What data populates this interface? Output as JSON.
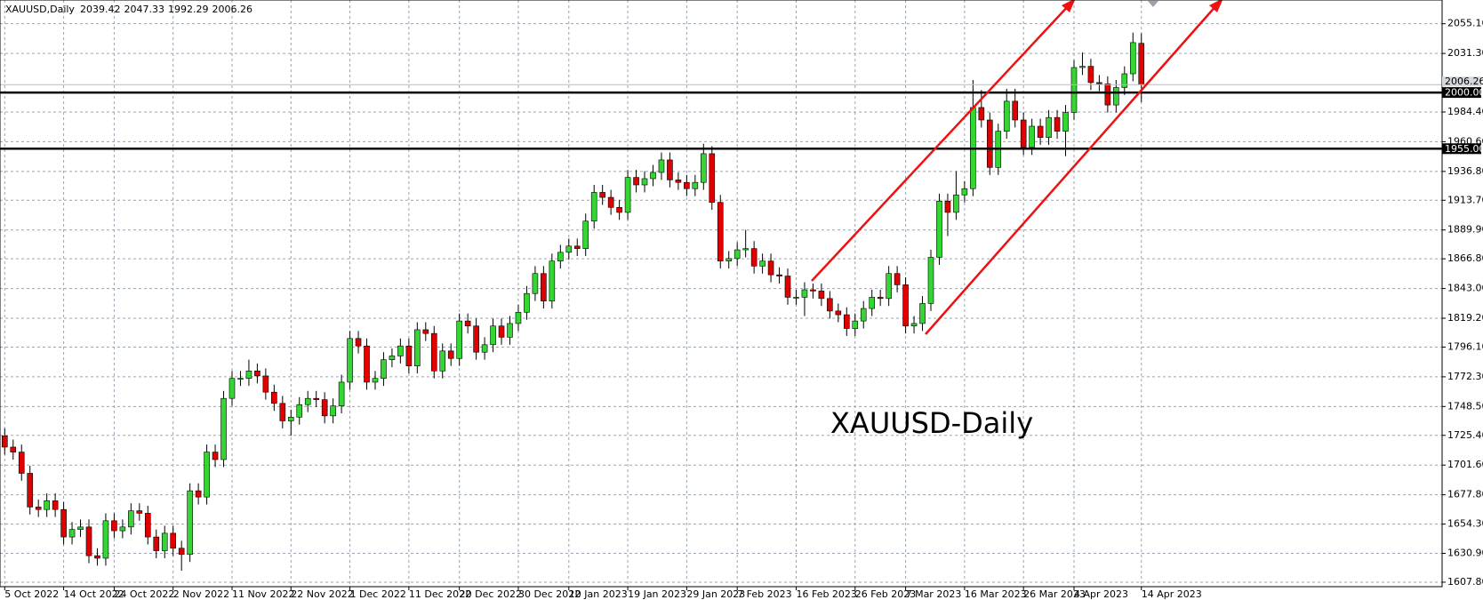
{
  "chart_data": {
    "type": "candlestick",
    "symbol": "XAUUSD,Daily",
    "annotation": "XAUUSD-Daily",
    "up_color": "#33d633",
    "down_color": "#e00000",
    "annotation_color": "#e8141c",
    "grid": true,
    "ylim": [
      1604.2,
      2074.1
    ],
    "yticks": [
      {
        "value": 1607.8,
        "label": "1607.80"
      },
      {
        "value": 1630.9,
        "label": "1630.90"
      },
      {
        "value": 1654.3,
        "label": "1654.30"
      },
      {
        "value": 1677.8,
        "label": "1677.80"
      },
      {
        "value": 1701.6,
        "label": "1701.60"
      },
      {
        "value": 1725.4,
        "label": "1725.40"
      },
      {
        "value": 1748.5,
        "label": "1748.50"
      },
      {
        "value": 1772.3,
        "label": "1772.30"
      },
      {
        "value": 1796.1,
        "label": "1796.10"
      },
      {
        "value": 1819.2,
        "label": "1819.20"
      },
      {
        "value": 1843,
        "label": "1843.00"
      },
      {
        "value": 1866.8,
        "label": "1866.80"
      },
      {
        "value": 1889.9,
        "label": "1889.90"
      },
      {
        "value": 1913.7,
        "label": "1913.70"
      },
      {
        "value": 1936.8,
        "label": "1936.80"
      },
      {
        "value": 1960.6,
        "label": "1960.60"
      },
      {
        "value": 1984.4,
        "label": "1984.40"
      },
      {
        "value": 2031.3,
        "label": "2031.30"
      },
      {
        "value": 2055.1,
        "label": "2055.10"
      }
    ],
    "levels": [
      {
        "value": 2000,
        "label": "2000.00"
      },
      {
        "value": 1955,
        "label": "1955.00"
      }
    ],
    "price_line": {
      "value": 2006.26,
      "label": "2006.26"
    },
    "categories": [
      "5 Oct 2022",
      null,
      null,
      null,
      null,
      null,
      null,
      "14 Oct 2022",
      null,
      null,
      null,
      null,
      null,
      "24 Oct 2022",
      null,
      null,
      null,
      null,
      null,
      null,
      "2 Nov 2022",
      null,
      null,
      null,
      null,
      null,
      null,
      "11 Nov 2022",
      null,
      null,
      null,
      null,
      null,
      null,
      "22 Nov 2022",
      null,
      null,
      null,
      null,
      null,
      null,
      "1 Dec 2022",
      null,
      null,
      null,
      null,
      null,
      null,
      "11 Dec 2022",
      null,
      null,
      null,
      null,
      null,
      "20 Dec 2022",
      null,
      null,
      null,
      null,
      null,
      null,
      "30 Dec 2022",
      null,
      null,
      null,
      null,
      null,
      "10 Jan 2023",
      null,
      null,
      null,
      null,
      null,
      null,
      "19 Jan 2023",
      null,
      null,
      null,
      null,
      null,
      null,
      "29 Jan 2023",
      null,
      null,
      null,
      null,
      null,
      "7 Feb 2023",
      null,
      null,
      null,
      null,
      null,
      null,
      "16 Feb 2023",
      null,
      null,
      null,
      null,
      null,
      null,
      "26 Feb 2023",
      null,
      null,
      null,
      null,
      null,
      "7 Mar 2023",
      null,
      null,
      null,
      null,
      null,
      null,
      "16 Mar 2023",
      null,
      null,
      null,
      null,
      null,
      null,
      "26 Mar 2023",
      null,
      null,
      null,
      null,
      null,
      "4 Apr 2023",
      null,
      null,
      null,
      null,
      null,
      null,
      null,
      "14 Apr 2023"
    ],
    "open": [
      1725,
      1716,
      1712,
      1695,
      1668,
      1666,
      1673,
      1666,
      1644,
      1650,
      1652,
      1629,
      1627,
      1657,
      1649,
      1652,
      1665,
      1663,
      1644,
      1633,
      1647,
      1635,
      1630,
      1681,
      1676,
      1712,
      1706,
      1755,
      1771,
      1771,
      1777,
      1773,
      1760,
      1751,
      1737,
      1740,
      1750,
      1755,
      1754,
      1741,
      1749,
      1768,
      1803,
      1797,
      1768,
      1771,
      1786,
      1789,
      1797,
      1781,
      1810,
      1807,
      1777,
      1793,
      1787,
      1817,
      1813,
      1792,
      1798,
      1813,
      1804,
      1815,
      1824,
      1839,
      1855,
      1833,
      1865,
      1872,
      1877,
      1875,
      1897,
      1920,
      1916,
      1908,
      1904,
      1932,
      1926,
      1931,
      1936,
      1946,
      1930,
      1928,
      1923,
      1928,
      1951,
      1912,
      1865,
      1867,
      1874,
      1875,
      1861,
      1865,
      1854,
      1853,
      1836,
      1836,
      1842,
      1841,
      1835,
      1825,
      1822,
      1811,
      1817,
      1827,
      1836,
      1835,
      1855,
      1846,
      1813,
      1815,
      1831,
      1868,
      1913,
      1904,
      1918,
      1923,
      1988,
      1978,
      1940,
      1969,
      1993,
      1978,
      1956,
      1973,
      1964,
      1980,
      1969,
      1984,
      2020,
      2021,
      2008,
      2007,
      1990,
      2004,
      2015,
      2039.42
    ],
    "high": [
      1731,
      1722,
      1718,
      1701,
      1674,
      1679,
      1679,
      1672,
      1656,
      1658,
      1658,
      1635,
      1663,
      1663,
      1658,
      1671,
      1671,
      1669,
      1650,
      1653,
      1653,
      1641,
      1687,
      1687,
      1718,
      1718,
      1761,
      1777,
      1777,
      1786,
      1783,
      1779,
      1766,
      1757,
      1746,
      1756,
      1761,
      1761,
      1760,
      1755,
      1774,
      1809,
      1809,
      1803,
      1777,
      1792,
      1795,
      1803,
      1803,
      1816,
      1816,
      1813,
      1799,
      1799,
      1823,
      1823,
      1819,
      1804,
      1819,
      1819,
      1821,
      1830,
      1845,
      1861,
      1861,
      1871,
      1878,
      1883,
      1883,
      1903,
      1926,
      1926,
      1922,
      1914,
      1938,
      1938,
      1937,
      1942,
      1952,
      1952,
      1936,
      1934,
      1934,
      1959,
      1957,
      1918,
      1873,
      1880,
      1890,
      1881,
      1871,
      1871,
      1860,
      1859,
      1842,
      1848,
      1847,
      1847,
      1841,
      1831,
      1828,
      1823,
      1833,
      1842,
      1842,
      1861,
      1861,
      1852,
      1821,
      1837,
      1874,
      1919,
      1919,
      1937,
      1929,
      2010,
      2002,
      1984,
      1975,
      2003,
      2003,
      1984,
      1979,
      1979,
      1986,
      1986,
      1990,
      2026,
      2032,
      2027,
      2014,
      2013,
      2010,
      2021,
      2048,
      2047.33
    ],
    "low": [
      1710,
      1706,
      1689,
      1662,
      1660,
      1660,
      1660,
      1638,
      1638,
      1644,
      1623,
      1621,
      1621,
      1643,
      1643,
      1646,
      1657,
      1638,
      1627,
      1627,
      1629,
      1617,
      1624,
      1670,
      1670,
      1700,
      1700,
      1749,
      1765,
      1765,
      1767,
      1754,
      1745,
      1731,
      1725,
      1734,
      1744,
      1748,
      1735,
      1735,
      1743,
      1762,
      1791,
      1762,
      1762,
      1765,
      1780,
      1783,
      1775,
      1775,
      1801,
      1771,
      1771,
      1781,
      1781,
      1807,
      1786,
      1786,
      1792,
      1798,
      1798,
      1809,
      1818,
      1833,
      1827,
      1827,
      1859,
      1866,
      1869,
      1869,
      1891,
      1910,
      1902,
      1898,
      1898,
      1920,
      1920,
      1925,
      1930,
      1924,
      1922,
      1917,
      1917,
      1922,
      1906,
      1859,
      1859,
      1861,
      1868,
      1855,
      1855,
      1848,
      1847,
      1830,
      1830,
      1821,
      1835,
      1829,
      1819,
      1816,
      1805,
      1805,
      1811,
      1821,
      1829,
      1829,
      1840,
      1807,
      1807,
      1809,
      1825,
      1862,
      1885,
      1898,
      1912,
      1917,
      1972,
      1934,
      1934,
      1963,
      1972,
      1950,
      1950,
      1958,
      1958,
      1963,
      1949,
      1978,
      2014,
      2002,
      2001,
      1984,
      1984,
      1998,
      2009,
      1992.29
    ],
    "close": [
      1716,
      1712,
      1695,
      1668,
      1666,
      1673,
      1666,
      1644,
      1650,
      1652,
      1629,
      1627,
      1657,
      1649,
      1652,
      1665,
      1663,
      1644,
      1633,
      1647,
      1635,
      1630,
      1681,
      1676,
      1712,
      1706,
      1755,
      1771,
      1771,
      1777,
      1773,
      1760,
      1751,
      1737,
      1740,
      1750,
      1755,
      1754,
      1741,
      1749,
      1768,
      1803,
      1797,
      1768,
      1771,
      1786,
      1789,
      1797,
      1781,
      1810,
      1807,
      1777,
      1793,
      1787,
      1817,
      1813,
      1792,
      1798,
      1813,
      1804,
      1815,
      1824,
      1839,
      1855,
      1833,
      1865,
      1872,
      1877,
      1875,
      1897,
      1920,
      1916,
      1908,
      1904,
      1932,
      1926,
      1931,
      1936,
      1946,
      1930,
      1928,
      1923,
      1928,
      1951,
      1912,
      1865,
      1867,
      1874,
      1875,
      1861,
      1865,
      1854,
      1853,
      1836,
      1836,
      1842,
      1841,
      1835,
      1825,
      1822,
      1811,
      1817,
      1827,
      1836,
      1835,
      1855,
      1846,
      1813,
      1815,
      1831,
      1868,
      1913,
      1904,
      1918,
      1923,
      1988,
      1978,
      1940,
      1969,
      1993,
      1978,
      1956,
      1973,
      1964,
      1980,
      1969,
      1984,
      2020,
      2021,
      2008,
      2007,
      1990,
      2004,
      2015,
      2040,
      2006.26
    ]
  }
}
